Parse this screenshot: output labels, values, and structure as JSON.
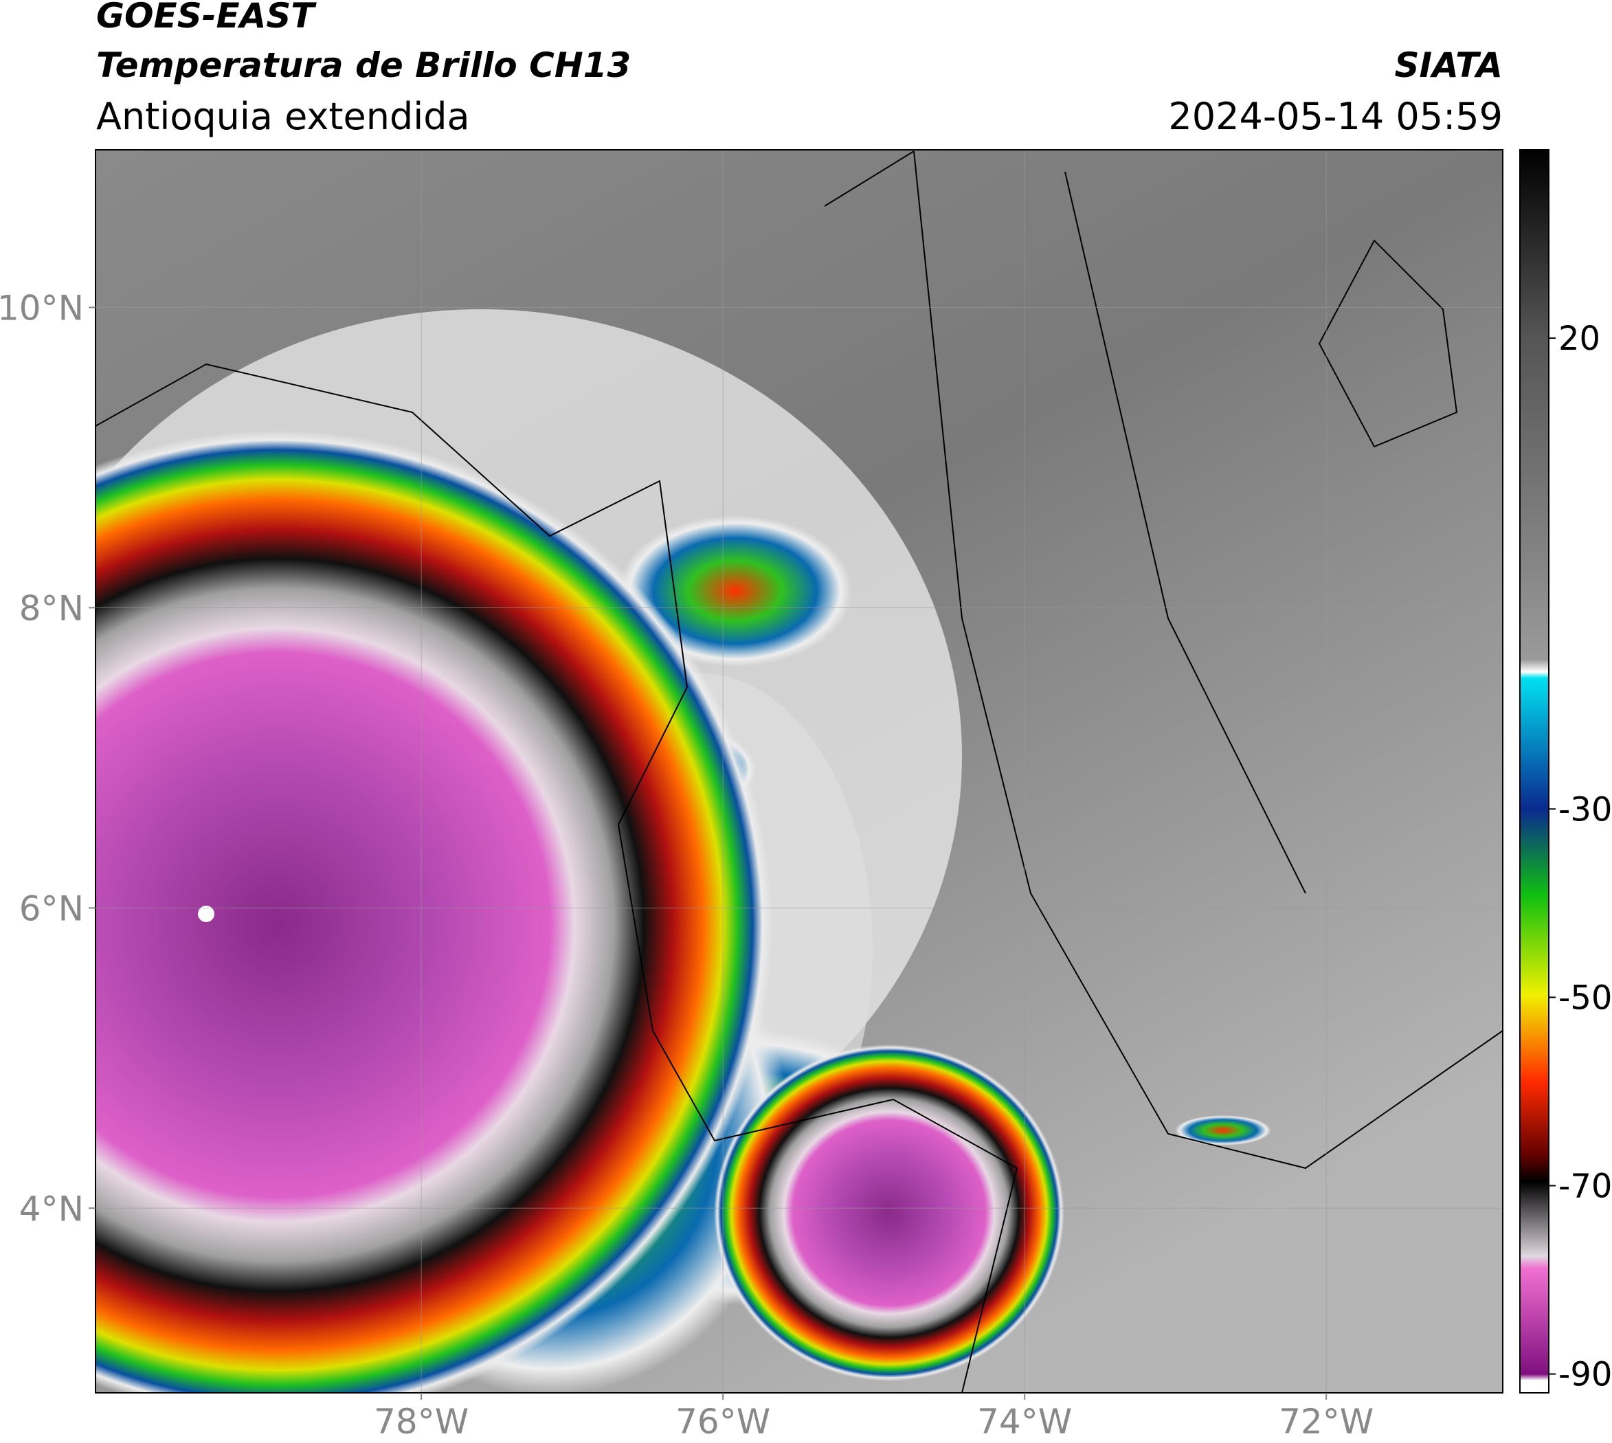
{
  "header": {
    "satellite": "GOES-EAST",
    "product": "Temperatura de Brillo CH13",
    "region": "Antioquia extendida",
    "source": "SIATA",
    "datetime": "2024-05-14 05:59"
  },
  "map": {
    "xlim": [
      -80.16,
      -70.83
    ],
    "ylim": [
      2.77,
      11.05
    ],
    "xticks": [
      {
        "value": -78,
        "label": "78°W"
      },
      {
        "value": -76,
        "label": "76°W"
      },
      {
        "value": -74,
        "label": "74°W"
      },
      {
        "value": -72,
        "label": "72°W"
      }
    ],
    "yticks": [
      {
        "value": 4,
        "label": "4°N"
      },
      {
        "value": 6,
        "label": "6°N"
      },
      {
        "value": 8,
        "label": "8°N"
      },
      {
        "value": 10,
        "label": "10°N"
      }
    ]
  },
  "colorbar": {
    "lim": [
      -92,
      40
    ],
    "ticks": [
      20,
      -30,
      -50,
      -70,
      -90
    ]
  }
}
